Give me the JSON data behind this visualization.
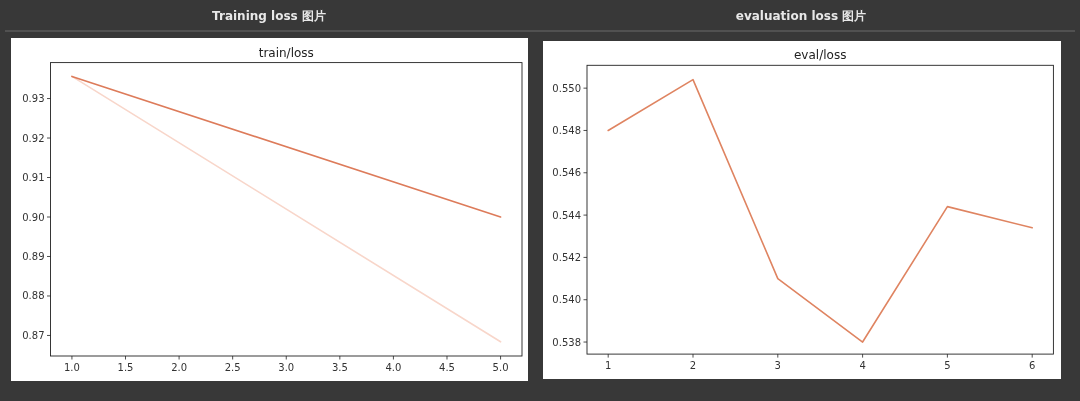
{
  "chart_data": [
    {
      "type": "line",
      "title": "Training loss 图片",
      "subtitle": "train/loss",
      "x": [
        1,
        5
      ],
      "series": [
        {
          "color": "#f8d6ca",
          "values": [
            0.9356,
            0.8684
          ]
        },
        {
          "color": "#dd7b5a",
          "values": [
            0.9356,
            0.9
          ]
        }
      ],
      "xlim": [
        0.8,
        5.2
      ],
      "xticks": [
        {
          "value": 1,
          "label": "1.0"
        },
        1.5,
        {
          "value": 2,
          "label": "2.0"
        },
        2.5,
        {
          "value": 3,
          "label": "3.0"
        },
        3.5,
        {
          "value": 4,
          "label": "4.0"
        },
        4.5,
        {
          "value": 5,
          "label": "5.0"
        }
      ],
      "ylim": [
        0.8648,
        0.9391
      ],
      "yticks": [
        0.87,
        0.88,
        0.89,
        {
          "value": 0.9,
          "label": "0.90"
        },
        0.91,
        0.92,
        0.93
      ]
    },
    {
      "type": "line",
      "title": "evaluation loss 图片",
      "subtitle": "eval/loss",
      "x": [
        1,
        2,
        3,
        4,
        5,
        6
      ],
      "series": [
        {
          "color": "#df8461",
          "values": [
            0.548,
            0.5504,
            0.541,
            0.538,
            0.5444,
            0.5434
          ]
        }
      ],
      "xlim": [
        0.75,
        6.25
      ],
      "xticks": [
        1,
        2,
        3,
        4,
        5,
        6
      ],
      "ylim": [
        0.53743,
        0.55108
      ],
      "yticks": [
        0.538,
        {
          "value": 0.54,
          "label": "0.540"
        },
        0.542,
        0.544,
        0.546,
        0.548,
        {
          "value": 0.55,
          "label": "0.550"
        }
      ]
    }
  ]
}
